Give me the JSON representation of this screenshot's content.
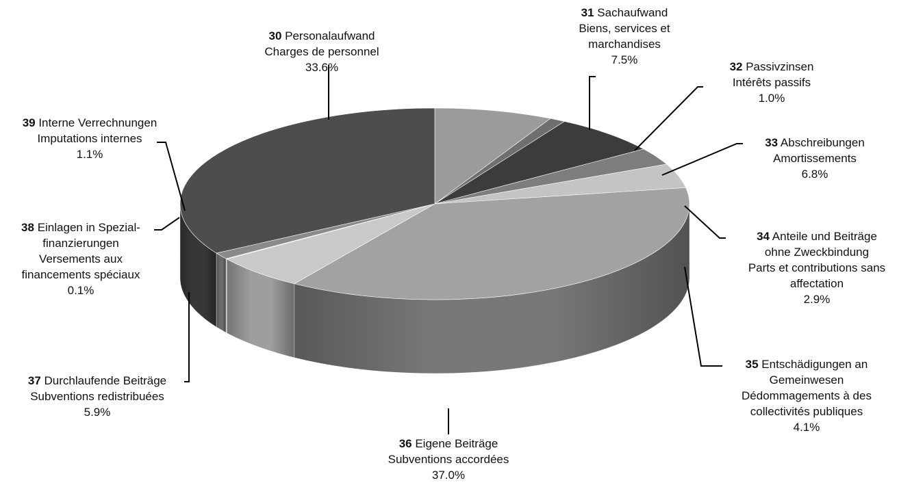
{
  "chart_data": {
    "type": "pie",
    "style": "3d",
    "unit": "%",
    "start": "top-center",
    "direction": "clockwise",
    "slices": [
      {
        "code": "31",
        "lines": [
          "Sachaufwand",
          "Biens, services et",
          "marchandises"
        ],
        "value": 7.5,
        "label": "7.5%",
        "color": "#9b9b9b",
        "side": "#7c7c7c"
      },
      {
        "code": "32",
        "lines": [
          "Passivzinsen",
          "Intérêts passifs"
        ],
        "value": 1.0,
        "label": "1.0%",
        "color": "#6f6f6f",
        "side": "#575757"
      },
      {
        "code": "33",
        "lines": [
          "Abschreibungen",
          "Amortissements"
        ],
        "value": 6.8,
        "label": "6.8%",
        "color": "#3c3c3c",
        "side": "#2c2c2c"
      },
      {
        "code": "34",
        "lines": [
          "Anteile und Beiträge",
          "ohne Zweckbindung",
          "Parts et contributions sans",
          "affectation"
        ],
        "value": 2.9,
        "label": "2.9%",
        "color": "#7d7d7d",
        "side": "#626262"
      },
      {
        "code": "35",
        "lines": [
          "Entschädigungen an",
          "Gemeinwesen",
          "Dédommagements à des",
          "collectivités publiques"
        ],
        "value": 4.1,
        "label": "4.1%",
        "color": "#c4c4c4",
        "side": "#a2a2a2"
      },
      {
        "code": "36",
        "lines": [
          "Eigene Beiträge",
          "Subventions accordées"
        ],
        "value": 37.0,
        "label": "37.0%",
        "color": "#a2a2a2",
        "side": "#7e7e7e"
      },
      {
        "code": "37",
        "lines": [
          "Durchlaufende Beiträge",
          "Subventions redistribuées"
        ],
        "value": 5.9,
        "label": "5.9%",
        "color": "#c9c9c9",
        "side": "#a6a6a6"
      },
      {
        "code": "38",
        "lines": [
          "Einlagen in Spezial-",
          "finanzierungen",
          "Versements aux",
          "financements spéciaux"
        ],
        "value": 0.1,
        "label": "0.1%",
        "color": "#dedede",
        "side": "#bdbdbd"
      },
      {
        "code": "39",
        "lines": [
          "Interne Verrechnungen",
          "Imputations internes"
        ],
        "value": 1.1,
        "label": "1.1%",
        "color": "#8a8a8a",
        "side": "#707070"
      },
      {
        "code": "30",
        "lines": [
          "Personalaufwand",
          "Charges de personnel"
        ],
        "value": 33.6,
        "label": "33.6%",
        "color": "#4d4d4d",
        "side": "#3a3a3a"
      }
    ]
  }
}
